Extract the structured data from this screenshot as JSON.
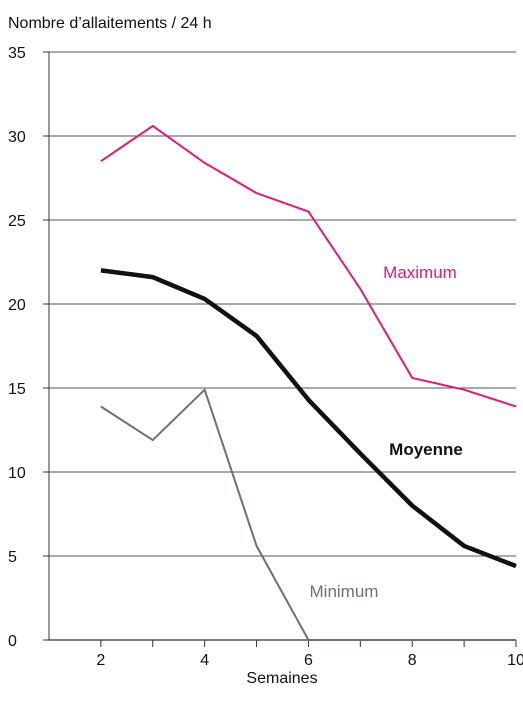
{
  "chart_data": {
    "type": "line",
    "ylabel": "Nombre d’allaitements / 24 h",
    "xlabel": "Semaines",
    "xlim": [
      1,
      10
    ],
    "ylim": [
      0,
      35
    ],
    "x_ticks": [
      2,
      4,
      6,
      8,
      10
    ],
    "y_ticks": [
      0,
      5,
      10,
      15,
      20,
      25,
      30,
      35
    ],
    "grid": "horizontal",
    "series": [
      {
        "name": "Maximum",
        "color": "#e0197d",
        "x": [
          2,
          3,
          4,
          5,
          6,
          7,
          8,
          9,
          10
        ],
        "values": [
          28.5,
          30.6,
          28.4,
          26.6,
          25.5,
          20.9,
          15.6,
          14.9,
          13.9
        ]
      },
      {
        "name": "Moyenne",
        "color": "#111111",
        "bold": true,
        "x": [
          2,
          3,
          4,
          5,
          6,
          7,
          8,
          9,
          10
        ],
        "values": [
          22.0,
          21.6,
          20.3,
          18.1,
          14.3,
          11.1,
          8.0,
          5.6,
          4.4
        ]
      },
      {
        "name": "Minimum",
        "color": "#6b7274",
        "x": [
          2,
          3,
          4,
          5,
          6,
          7,
          8,
          9,
          10
        ],
        "values": [
          13.9,
          11.9,
          14.9,
          5.6,
          0,
          0,
          0,
          0,
          0
        ]
      }
    ]
  }
}
